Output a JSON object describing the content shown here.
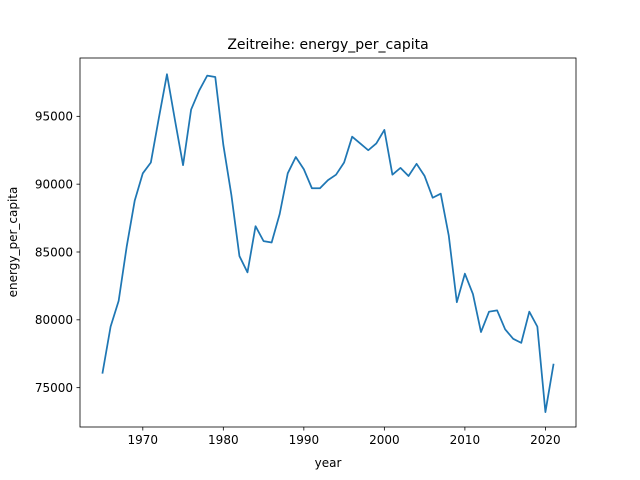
{
  "chart_data": {
    "type": "line",
    "title": "Zeitreihe: energy_per_capita",
    "xlabel": "year",
    "ylabel": "energy_per_capita",
    "xlim": [
      1962.2,
      2023.8
    ],
    "ylim": [
      72100,
      99300
    ],
    "xticks": [
      1970,
      1980,
      1990,
      2000,
      2010,
      2020
    ],
    "yticks": [
      75000,
      80000,
      85000,
      90000,
      95000
    ],
    "xtick_labels": [
      "1970",
      "1980",
      "1990",
      "2000",
      "2010",
      "2020"
    ],
    "ytick_labels": [
      "75000",
      "80000",
      "85000",
      "90000",
      "95000"
    ],
    "grid": false,
    "series": [
      {
        "color": "#1f77b4",
        "x": [
          1965,
          1966,
          1967,
          1968,
          1969,
          1970,
          1971,
          1972,
          1973,
          1974,
          1975,
          1976,
          1977,
          1978,
          1979,
          1980,
          1981,
          1982,
          1983,
          1984,
          1985,
          1986,
          1987,
          1988,
          1989,
          1990,
          1991,
          1992,
          1993,
          1994,
          1995,
          1996,
          1997,
          1998,
          1999,
          2000,
          2001,
          2002,
          2003,
          2004,
          2005,
          2006,
          2007,
          2008,
          2009,
          2010,
          2011,
          2012,
          2013,
          2014,
          2015,
          2016,
          2017,
          2018,
          2019,
          2020,
          2021
        ],
        "y": [
          76100,
          79500,
          81400,
          85400,
          88800,
          90800,
          91600,
          94900,
          98100,
          94700,
          91400,
          95500,
          96900,
          98000,
          97900,
          92900,
          89200,
          84700,
          83500,
          86900,
          85800,
          85700,
          87800,
          90800,
          92000,
          91100,
          89700,
          89700,
          90300,
          90700,
          91600,
          93500,
          93000,
          92500,
          93000,
          94000,
          90700,
          91200,
          90600,
          91500,
          90600,
          89000,
          89300,
          86200,
          81300,
          83400,
          81900,
          79100,
          80600,
          80700,
          79300,
          78600,
          78300,
          80600,
          79500,
          73200,
          76700
        ]
      }
    ]
  }
}
